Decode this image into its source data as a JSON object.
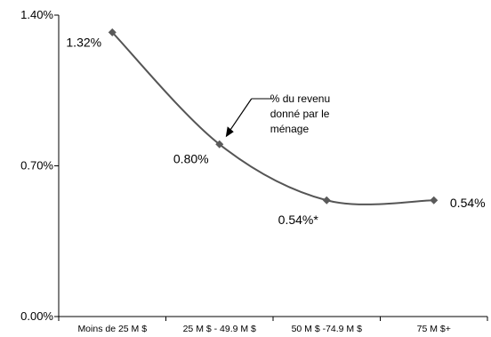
{
  "chart_data": {
    "type": "line",
    "categories": [
      "Moins de 25 M $",
      "25 M $ - 49.9 M $",
      "50 M $ -74.9 M $",
      "75 M $+"
    ],
    "series": [
      {
        "values": [
          1.32,
          0.8,
          0.54,
          0.54
        ],
        "labels": [
          "1.32%",
          "0.80%",
          "0.54%*",
          "0.54%"
        ]
      }
    ],
    "yticks": [
      {
        "value": 0,
        "label": "0.00%"
      },
      {
        "value": 0.7,
        "label": "0.70%"
      },
      {
        "value": 1.4,
        "label": "1.40%"
      }
    ],
    "ylim": [
      0,
      1.4
    ],
    "annotation": {
      "lines": [
        "% du revenu",
        "donné par le",
        "ménage"
      ],
      "target_index": 1
    },
    "line_color": "#555555",
    "marker_color": "#5a5a5a",
    "grid": false,
    "legend": "none"
  }
}
